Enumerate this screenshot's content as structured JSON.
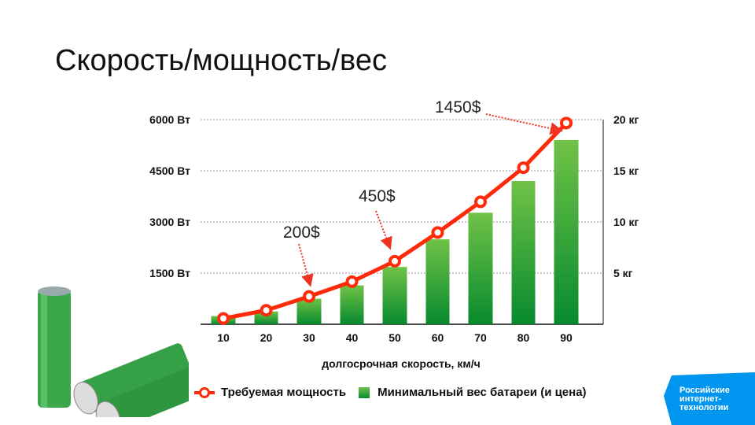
{
  "title": "Скорость/мощность/вес",
  "chart_data": {
    "type": "bar+line",
    "categories": [
      10,
      20,
      30,
      40,
      50,
      60,
      70,
      80,
      90
    ],
    "xlabel": "долгосрочная скорость, км/ч",
    "left_axis": {
      "ticks": [
        1500,
        3000,
        4500,
        6000
      ],
      "tick_labels": [
        "1500 Вт",
        "3000 Вт",
        "4500 Вт",
        "6000 Вт"
      ],
      "ylim": [
        0,
        6000
      ]
    },
    "right_axis": {
      "ticks": [
        5,
        10,
        15,
        20
      ],
      "tick_labels": [
        "5 кг",
        "10 кг",
        "15 кг",
        "20 кг"
      ],
      "ylim": [
        0,
        20
      ]
    },
    "series": [
      {
        "name": "Требуемая мощность",
        "type": "line",
        "axis": "left",
        "color": "#ff2a0a",
        "values": [
          170,
          410,
          815,
          1250,
          1850,
          2690,
          3590,
          4590,
          5900
        ]
      },
      {
        "name": "Минимальный вес батареи (и цена)",
        "type": "bar",
        "axis": "right",
        "color": "#2ea63c",
        "values": [
          0.8,
          1.25,
          2.5,
          3.8,
          5.6,
          8.3,
          10.9,
          14.0,
          18.0
        ]
      }
    ],
    "annotations": [
      {
        "text": "200$",
        "category": 30
      },
      {
        "text": "450$",
        "category": 50
      },
      {
        "text": "1450$",
        "category": 90
      }
    ],
    "grid": "horizontal dashed",
    "legend": "bottom"
  },
  "logo": {
    "lines": [
      "Российские",
      "интернет-",
      "технологии"
    ],
    "color": "#0096f0"
  }
}
